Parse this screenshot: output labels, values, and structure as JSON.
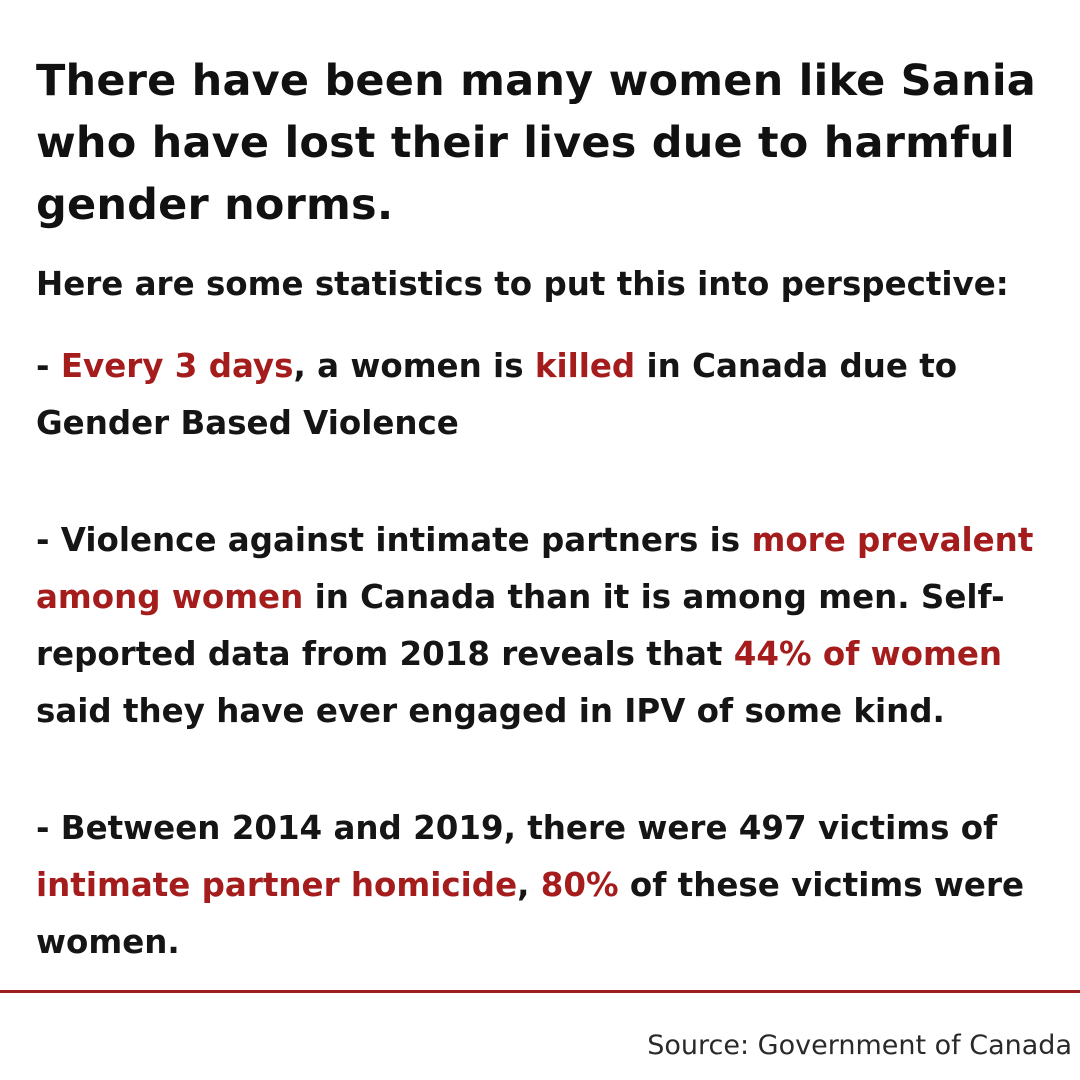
{
  "headline": "There have been many women like Sania who have lost their lives due to harmful gender norms.",
  "intro": "Here are some statistics to put this into perspective:",
  "stats": [
    {
      "prefix": "- ",
      "highlight1": "Every 3 days",
      "text1": ", a women is ",
      "highlight2": "killed",
      "text2": " in Canada due to Gender Based Violence"
    },
    {
      "prefix": "- Violence against intimate partners is ",
      "highlight1": "more prevalent among women",
      "text1": " in Canada than it is among men. Self-reported data from 2018 reveals that ",
      "highlight2": "44% of women",
      "text2": " said they have ever engaged in IPV of some kind."
    },
    {
      "prefix": "- Between 2014 and 2019, there were 497 victims of ",
      "highlight1": "intimate partner homicide",
      "text1": ", ",
      "highlight2": "80%",
      "text2": " of these victims were women."
    }
  ],
  "source": "Source: Government of Canada",
  "colors": {
    "highlight": "#a51c1c",
    "text": "#151515",
    "divider": "#9b1d1d",
    "background": "#ffffff"
  }
}
